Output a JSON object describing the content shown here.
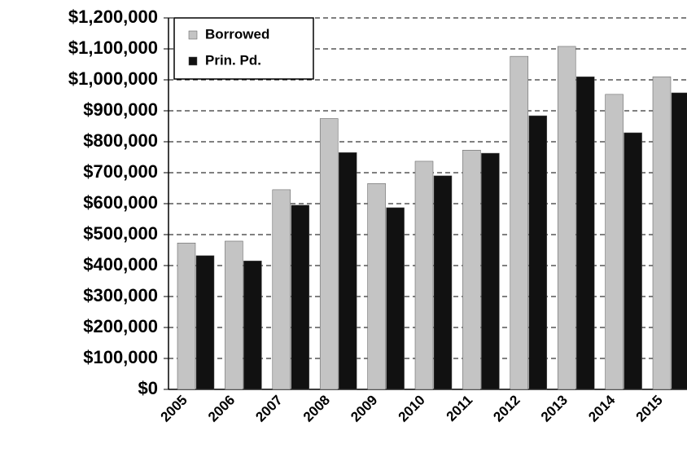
{
  "chart_data": {
    "type": "bar",
    "categories": [
      "2005",
      "2006",
      "2007",
      "2008",
      "2009",
      "2010",
      "2011",
      "2012",
      "2013",
      "2014",
      "2015"
    ],
    "series": [
      {
        "name": "Borrowed",
        "color": "#c4c4c4",
        "values": [
          473000,
          479000,
          645000,
          875000,
          665000,
          737000,
          773000,
          1076000,
          1108000,
          953000,
          1010000
        ]
      },
      {
        "name": "Prin. Pd.",
        "color": "#111111",
        "values": [
          432000,
          415000,
          595000,
          765000,
          587000,
          690000,
          763000,
          884000,
          1010000,
          829000,
          958000
        ]
      }
    ],
    "ylim": [
      0,
      1200000
    ],
    "yticks": [
      {
        "value": 0,
        "label": "$0"
      },
      {
        "value": 100000,
        "label": "$100,000"
      },
      {
        "value": 200000,
        "label": "$200,000"
      },
      {
        "value": 300000,
        "label": "$300,000"
      },
      {
        "value": 400000,
        "label": "$400,000"
      },
      {
        "value": 500000,
        "label": "$500,000"
      },
      {
        "value": 600000,
        "label": "$600,000"
      },
      {
        "value": 700000,
        "label": "$700,000"
      },
      {
        "value": 800000,
        "label": "$800,000"
      },
      {
        "value": 900000,
        "label": "$900,000"
      },
      {
        "value": 1000000,
        "label": "$1,000,000"
      },
      {
        "value": 1100000,
        "label": "$1,100,000"
      },
      {
        "value": 1200000,
        "label": "$1,200,000"
      }
    ],
    "grid": true,
    "legend": "upper left"
  }
}
